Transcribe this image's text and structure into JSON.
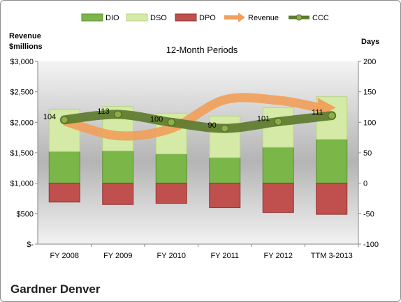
{
  "chart_data": {
    "type": "bar",
    "subtitle": "12-Month Periods",
    "company": "Gardner Denver",
    "categories": [
      "FY 2008",
      "FY 2009",
      "FY 2010",
      "FY 2011",
      "FY 2012",
      "TTM 3-2013"
    ],
    "left_axis": {
      "title_line1": "Revenue",
      "title_line2": "$millions",
      "ylim": [
        0,
        3000
      ],
      "ticks": [
        0,
        500,
        1000,
        1500,
        2000,
        2500,
        3000
      ],
      "tick_labels": [
        "$-",
        "$500",
        "$1,000",
        "$1,500",
        "$2,000",
        "$2,500",
        "$3,000"
      ]
    },
    "right_axis": {
      "title": "Days",
      "ylim": [
        -100,
        200
      ],
      "ticks": [
        -100,
        -50,
        0,
        50,
        100,
        150,
        200
      ],
      "tick_labels": [
        "-100",
        "-50",
        "0",
        "50",
        "100",
        "150",
        "200"
      ]
    },
    "series": [
      {
        "name": "DIO",
        "axis": "right",
        "kind": "bar",
        "color": "#7ab648",
        "values": [
          52,
          53,
          48,
          42,
          59,
          72
        ]
      },
      {
        "name": "DSO",
        "axis": "right",
        "kind": "bar",
        "color": "#d4eaa6",
        "values": [
          69,
          73,
          67,
          68,
          65,
          70
        ]
      },
      {
        "name": "DPO",
        "axis": "right",
        "kind": "bar",
        "color": "#c0504d",
        "values": [
          -31,
          -35,
          -33,
          -40,
          -48,
          -51
        ]
      },
      {
        "name": "Revenue",
        "axis": "left",
        "kind": "line",
        "color": "#f0a05a",
        "values": [
          2020,
          1780,
          1900,
          2370,
          2360,
          2240
        ]
      },
      {
        "name": "CCC",
        "axis": "right",
        "kind": "line",
        "color": "#5d7b2c",
        "values": [
          104,
          113,
          100,
          90,
          101,
          111
        ],
        "labels": [
          "104",
          "113",
          "100",
          "90",
          "101",
          "111"
        ]
      }
    ],
    "legend": {
      "position": "top",
      "entries": [
        "DIO",
        "DSO",
        "DPO",
        "Revenue",
        "CCC"
      ]
    },
    "grid": false
  }
}
